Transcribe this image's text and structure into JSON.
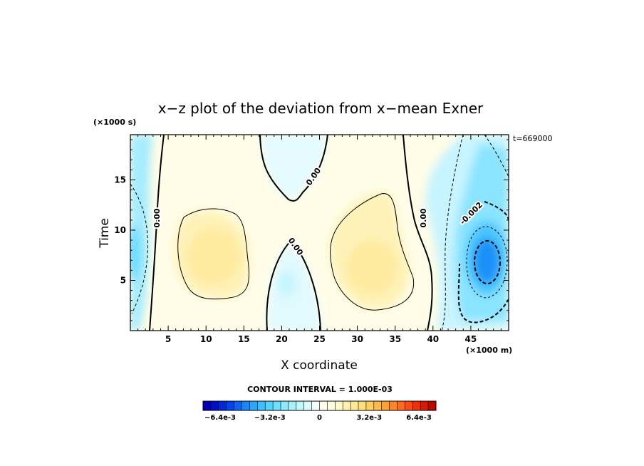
{
  "chart_data": {
    "type": "heatmap",
    "title": "x−z plot of the deviation from x−mean Exner",
    "xlabel": "X coordinate",
    "ylabel": "Time",
    "x_unit": "(×1000 m)",
    "y_unit": "(×1000 s)",
    "timestamp": "t=669000",
    "xlim": [
      0,
      50
    ],
    "ylim": [
      0,
      19.5
    ],
    "x_ticks": [
      5,
      10,
      15,
      20,
      25,
      30,
      35,
      40,
      45
    ],
    "y_ticks": [
      5,
      10,
      15
    ],
    "contour_interval_text": "CONTOUR INTERVAL = 1.000E-03",
    "contour_labels": [
      {
        "text": "0.00",
        "x": 4,
        "y": 11.5,
        "angle": -90
      },
      {
        "text": "0.00",
        "x": 24,
        "y": 15.8,
        "angle": -55
      },
      {
        "text": "0.00",
        "x": 21,
        "y": 8.8,
        "angle": 55
      },
      {
        "text": "0.00",
        "x": 38.5,
        "y": 11,
        "angle": -90
      },
      {
        "text": "-0.002",
        "x": 45.5,
        "y": 11.5,
        "angle": -45
      }
    ],
    "field_features": [
      {
        "kind": "low",
        "x": 47,
        "y": 7,
        "rx": 3.5,
        "ry": 6.5,
        "value": -0.0055
      },
      {
        "kind": "low",
        "x": 1,
        "y": 8.5,
        "rx": 2,
        "ry": 10,
        "value": -0.002
      },
      {
        "kind": "low",
        "x": 20.5,
        "y": 5,
        "rx": 2.5,
        "ry": 4,
        "value": -0.0008
      },
      {
        "kind": "low",
        "x": 22,
        "y": 18,
        "rx": 4,
        "ry": 3,
        "value": -0.0006
      },
      {
        "kind": "high",
        "x": 10,
        "y": 8,
        "rx": 5,
        "ry": 5,
        "value": 0.0018
      },
      {
        "kind": "high",
        "x": 32,
        "y": 7,
        "rx": 5,
        "ry": 6,
        "value": 0.0018
      }
    ],
    "colorbar": {
      "colors": [
        "#0000b0",
        "#0010c8",
        "#0028dc",
        "#0044ec",
        "#0a64f4",
        "#1a86f8",
        "#2aa6fc",
        "#3cc0ff",
        "#52d4ff",
        "#6ee0ff",
        "#8aeaff",
        "#a6f2ff",
        "#c2f8ff",
        "#dcfcff",
        "#f2feff",
        "#fffff0",
        "#fffde0",
        "#fff8c8",
        "#fff2b0",
        "#ffea96",
        "#ffde7c",
        "#ffce62",
        "#ffba4a",
        "#ffa236",
        "#ff8826",
        "#ff6a18",
        "#ff4c0e",
        "#f03006",
        "#d81a02",
        "#b80a00"
      ],
      "tick_labels": [
        "-6.4e-3",
        "-3.2e-3",
        "0",
        "3.2e-3",
        "6.4e-3"
      ],
      "tick_values": [
        -0.0064,
        -0.0032,
        0,
        0.0032,
        0.0064
      ],
      "range": [
        -0.0075,
        0.0075
      ]
    }
  }
}
